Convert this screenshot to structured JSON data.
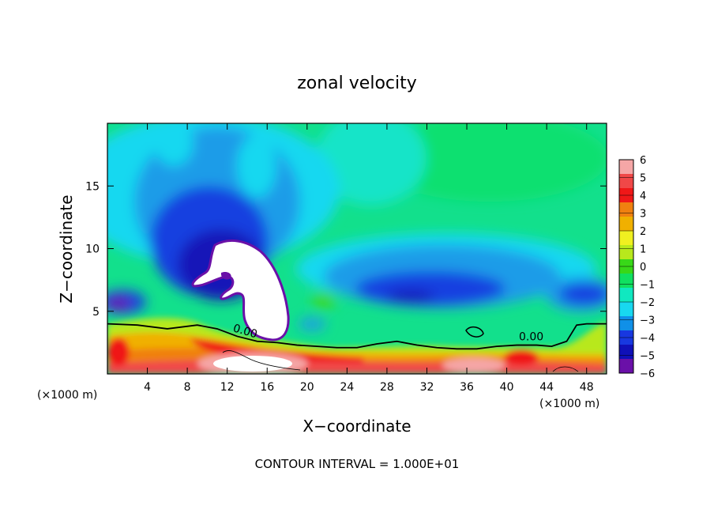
{
  "chart_data": {
    "type": "heatmap",
    "title": "zonal velocity",
    "xlabel": "X−coordinate",
    "ylabel": "Z−coordinate",
    "x_units_left": "(×1000 m)",
    "x_units_right": "(×1000 m)",
    "xlim": [
      0,
      50
    ],
    "ylim": [
      0,
      20
    ],
    "x_ticks": [
      4,
      8,
      12,
      16,
      20,
      24,
      28,
      32,
      36,
      40,
      44,
      48
    ],
    "y_ticks": [
      5,
      10,
      15
    ],
    "x_tick_labels": [
      "4",
      "8",
      "12",
      "16",
      "20",
      "24",
      "28",
      "32",
      "36",
      "40",
      "44",
      "48"
    ],
    "y_tick_labels": [
      "5",
      "10",
      "15"
    ],
    "colorbar": {
      "levels": [
        6,
        5,
        4,
        3,
        2,
        1,
        0,
        -1,
        -2,
        -3,
        -4,
        -5,
        -6
      ],
      "labels": [
        "6",
        "5",
        "4",
        "3",
        "2",
        "1",
        "0",
        "−1",
        "−2",
        "−3",
        "−4",
        "−5",
        "−6"
      ],
      "colors": [
        "#f5a6a6",
        "#f04848",
        "#f01818",
        "#f08010",
        "#f0b000",
        "#f0f020",
        "#b8e81c",
        "#38d818",
        "#10e060",
        "#10e8c0",
        "#18d8f0",
        "#1090e8",
        "#1838e0",
        "#1010b8",
        "#6a10a8"
      ]
    },
    "contour_labels": [
      {
        "text": "0.00",
        "x": 14,
        "y": 3.4
      },
      {
        "text": "0.00",
        "x": 42.8,
        "y": 3.0
      }
    ],
    "zero_contour": [
      [
        0,
        4.0
      ],
      [
        3,
        3.9
      ],
      [
        6,
        3.6
      ],
      [
        9,
        3.9
      ],
      [
        11,
        3.6
      ],
      [
        13,
        3.0
      ],
      [
        15,
        2.6
      ],
      [
        17,
        2.5
      ],
      [
        19,
        2.3
      ],
      [
        21,
        2.2
      ],
      [
        23,
        2.1
      ],
      [
        25,
        2.1
      ],
      [
        27,
        2.4
      ],
      [
        29,
        2.6
      ],
      [
        31,
        2.3
      ],
      [
        33,
        2.1
      ],
      [
        35,
        2.0
      ],
      [
        37,
        2.0
      ],
      [
        39,
        2.2
      ],
      [
        41,
        2.3
      ],
      [
        43,
        2.3
      ],
      [
        44.5,
        2.2
      ],
      [
        46,
        2.6
      ],
      [
        47,
        3.9
      ],
      [
        48,
        4.0
      ],
      [
        50,
        4.0
      ]
    ],
    "footer": "CONTOUR INTERVAL = 1.000E+01"
  }
}
